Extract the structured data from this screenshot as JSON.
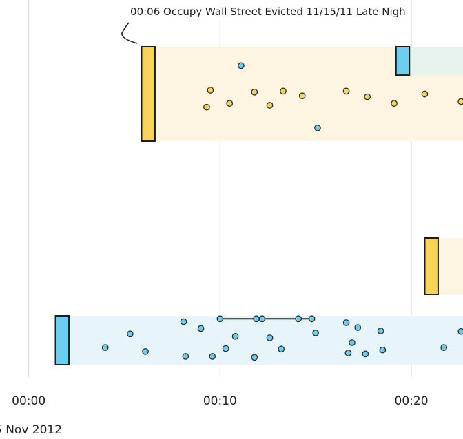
{
  "chart_data": {
    "type": "scatter",
    "title": "",
    "xlabel": "",
    "ylabel": "",
    "x_unit": "minutes",
    "xlim": [
      -1.5,
      22.7
    ],
    "x_ticks": [
      {
        "value": 0,
        "label": "00:00"
      },
      {
        "value": 10,
        "label": "00:10"
      },
      {
        "value": 20,
        "label": "00:20"
      }
    ],
    "date_label": "5 Nov 2012",
    "grid": true,
    "colors": {
      "yellow": "#f7d35a",
      "blue": "#6ccdf0",
      "yellow_band": "#fdf4e1",
      "blue_band": "#e7f5fb",
      "teal_band": "#e6f3ef"
    },
    "annotation": {
      "time": 6.1,
      "text": "00:06 Occupy Wall Street Evicted 11/15/11 Late Nigh"
    },
    "markers": [
      {
        "row": "top",
        "color": "yellow",
        "start": 5.9,
        "end": 6.6
      },
      {
        "row": "top",
        "color": "blue",
        "start": 19.2,
        "end": 19.9
      },
      {
        "row": "middle",
        "color": "yellow",
        "start": 20.7,
        "end": 21.4
      },
      {
        "row": "bottom",
        "color": "blue",
        "start": 1.4,
        "end": 2.1
      }
    ],
    "bands": [
      {
        "row": "top",
        "color": "yellow_band",
        "start": 6.6,
        "end": 22.7
      },
      {
        "row": "top",
        "color": "teal_band",
        "start": 19.9,
        "end": 22.7
      },
      {
        "row": "middle",
        "color": "yellow_band",
        "start": 21.4,
        "end": 22.7
      },
      {
        "row": "bottom",
        "color": "blue_band",
        "start": 2.1,
        "end": 22.7
      }
    ],
    "series": [
      {
        "row": "top",
        "color": "yellow",
        "x": [
          9.3,
          9.5,
          10.5,
          11.8,
          12.6,
          13.3,
          14.3,
          16.6,
          17.7,
          19.1,
          20.7,
          22.6
        ],
        "y": [
          0.64,
          0.46,
          0.6,
          0.48,
          0.62,
          0.47,
          0.52,
          0.47,
          0.53,
          0.6,
          0.5,
          0.58
        ]
      },
      {
        "row": "top",
        "color": "blue",
        "x": [
          11.1,
          15.1
        ],
        "y": [
          0.2,
          0.86
        ]
      },
      {
        "row": "bottom",
        "color": "blue",
        "x": [
          4.0,
          5.3,
          6.1,
          8.1,
          8.2,
          9.0,
          9.6,
          10.0,
          10.3,
          10.8,
          11.8,
          11.9,
          12.2,
          12.6,
          13.2,
          14.1,
          14.8,
          15.0,
          16.6,
          16.7,
          16.9,
          17.2,
          17.6,
          18.4,
          18.5,
          21.7,
          22.6
        ],
        "y": [
          0.65,
          0.37,
          0.73,
          0.12,
          0.83,
          0.26,
          0.83,
          0.06,
          0.67,
          0.42,
          0.85,
          0.06,
          0.06,
          0.45,
          0.68,
          0.06,
          0.06,
          0.35,
          0.14,
          0.76,
          0.55,
          0.24,
          0.78,
          0.31,
          0.7,
          0.65,
          0.32
        ]
      }
    ],
    "connector": {
      "row": "bottom",
      "y": 0.06,
      "x": [
        10.0,
        11.9,
        12.2,
        14.1,
        14.8
      ]
    }
  }
}
